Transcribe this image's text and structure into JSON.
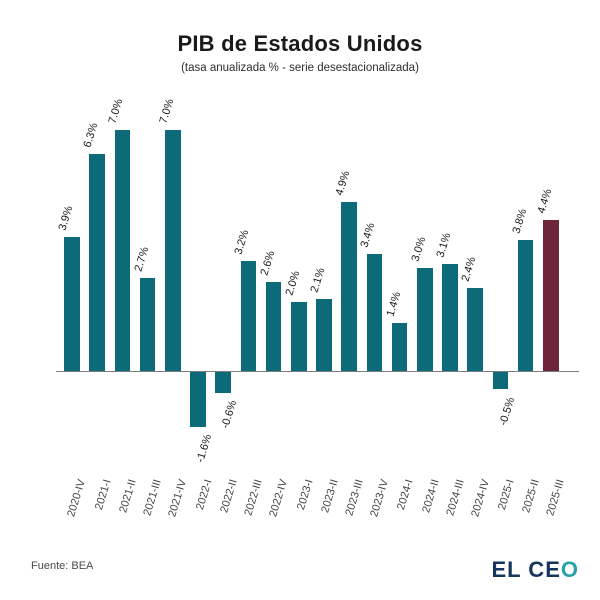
{
  "header": {
    "title": "PIB de Estados Unidos",
    "subtitle": "(tasa anualizada % - serie desestacionalizada)"
  },
  "chart_data": {
    "type": "bar",
    "title": "PIB de Estados Unidos",
    "subtitle": "(tasa anualizada % - serie desestacionalizada)",
    "unit": "%",
    "categories": [
      "2020-IV",
      "2021-I",
      "2021-II",
      "2021-III",
      "2021-IV",
      "2022-I",
      "2022-II",
      "2022-III",
      "2022-IV",
      "2023-I",
      "2023-II",
      "2023-III",
      "2023-IV",
      "2024-I",
      "2024-II",
      "2024-III",
      "2024-IV",
      "2025-I",
      "2025-II",
      "2025-III"
    ],
    "values": [
      3.9,
      6.3,
      7.0,
      2.7,
      7.0,
      -1.6,
      -0.6,
      3.2,
      2.6,
      2.0,
      2.1,
      4.9,
      3.4,
      1.4,
      3.0,
      3.1,
      2.4,
      -0.5,
      3.8,
      4.4
    ],
    "value_labels": [
      "3.9%",
      "6.3%",
      "7.0%",
      "2.7%",
      "7.0%",
      "-1.6%",
      "-0.6%",
      "3.2%",
      "2.6%",
      "2.0%",
      "2.1%",
      "4.9%",
      "3.4%",
      "1.4%",
      "3.0%",
      "3.1%",
      "2.4%",
      "-0.5%",
      "3.8%",
      "4.4%"
    ],
    "ylim": [
      -2,
      7.5
    ],
    "grid": false,
    "legend": "none",
    "bar_color": "#0d6a78",
    "highlight_color": "#6f2539",
    "highlight_index": 19,
    "axis_line_color": "#7d7d7d"
  },
  "footer": {
    "source": "Fuente: BEA",
    "logo_main": "EL CE",
    "logo_accent": "O",
    "logo_color_main": "#16355c",
    "logo_color_accent": "#2aa3a8"
  }
}
